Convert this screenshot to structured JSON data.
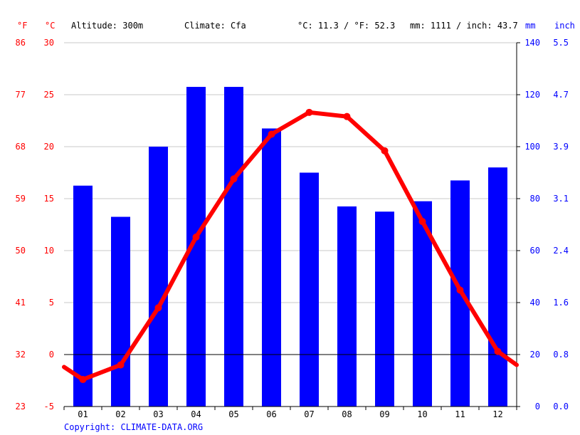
{
  "header": {
    "unit_f": "°F",
    "unit_c": "°C",
    "altitude": "Altitude: 300m",
    "climate": "Climate: Cfa",
    "temp_avg": "°C: 11.3 / °F: 52.3",
    "precip_avg": "mm: 1111 / inch: 43.7",
    "unit_mm": "mm",
    "unit_inch": "inch"
  },
  "footer": {
    "copyright": "Copyright: CLIMATE-DATA.ORG"
  },
  "colors": {
    "temp": "#ff0000",
    "precip": "#0000ff",
    "grid": "#c8c8c8",
    "zero": "#000000"
  },
  "chart_data": {
    "type": "bar",
    "categories": [
      "01",
      "02",
      "03",
      "04",
      "05",
      "06",
      "07",
      "08",
      "09",
      "10",
      "11",
      "12"
    ],
    "temp_axis": {
      "min": -5,
      "max": 30,
      "ticks_c": [
        "-5",
        "0",
        "5",
        "10",
        "15",
        "20",
        "25",
        "30"
      ],
      "ticks_f": [
        "23",
        "32",
        "41",
        "50",
        "59",
        "68",
        "77",
        "86"
      ]
    },
    "precip_axis": {
      "min": 0,
      "max": 140,
      "ticks_mm": [
        "0",
        "20",
        "40",
        "60",
        "80",
        "100",
        "120",
        "140"
      ],
      "ticks_inch": [
        "0.0",
        "0.8",
        "1.6",
        "2.4",
        "3.1",
        "3.9",
        "4.7",
        "5.5"
      ]
    },
    "series": [
      {
        "name": "",
        "type": "bar",
        "axis": "precip",
        "values": [
          85,
          73,
          100,
          123,
          123,
          107,
          90,
          77,
          75,
          79,
          87,
          92
        ]
      },
      {
        "name": "",
        "type": "line",
        "axis": "temp",
        "values": [
          -2.4,
          -1.0,
          4.5,
          11.3,
          16.9,
          21.2,
          23.3,
          22.9,
          19.6,
          12.8,
          6.2,
          0.3
        ]
      }
    ],
    "line_edge_values": [
      -1.2,
      -1.0
    ],
    "grid": true
  }
}
